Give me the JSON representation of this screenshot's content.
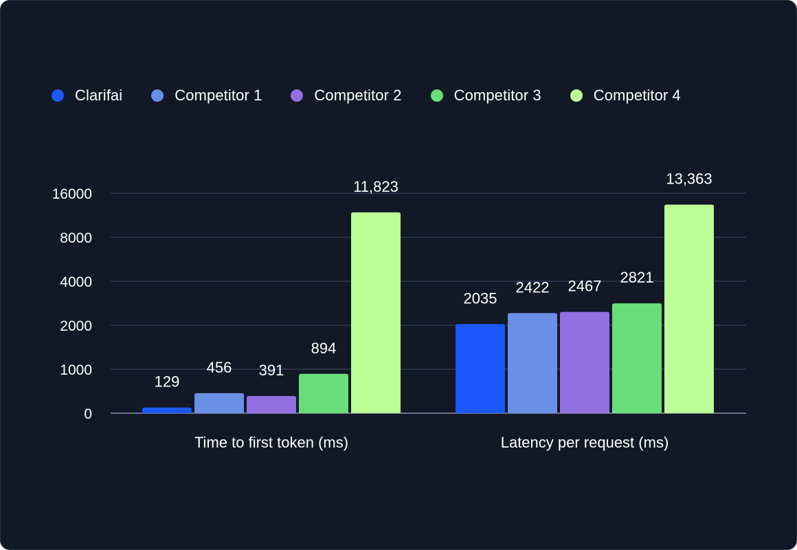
{
  "chart_data": {
    "type": "bar",
    "title": "",
    "xlabel": "",
    "ylabel": "",
    "categories": [
      "Time to first token (ms)",
      "Latency per request (ms)"
    ],
    "y_scale": "log2",
    "yticks": [
      0,
      1000,
      2000,
      4000,
      8000,
      16000
    ],
    "ylim": [
      0,
      16000
    ],
    "grid": true,
    "legend_position": "top-left",
    "series": [
      {
        "name": "Clarifai",
        "color": "#1c57fc",
        "values": [
          129,
          2035
        ],
        "labels": [
          "129",
          "2035"
        ]
      },
      {
        "name": "Competitor 1",
        "color": "#6a8fe6",
        "values": [
          456,
          2422
        ],
        "labels": [
          "456",
          "2422"
        ]
      },
      {
        "name": "Competitor 2",
        "color": "#9270e0",
        "values": [
          391,
          2467
        ],
        "labels": [
          "391",
          "2467"
        ]
      },
      {
        "name": "Competitor 3",
        "color": "#68de7b",
        "values": [
          894,
          2821
        ],
        "labels": [
          "894",
          "2821"
        ]
      },
      {
        "name": "Competitor 4",
        "color": "#bcfd95",
        "values": [
          11823,
          13363
        ],
        "labels": [
          "11,823",
          "13,363"
        ]
      }
    ]
  },
  "colors": {
    "background": "#121826",
    "gridline": "#444b6a",
    "axis": "#8a90a8",
    "text": "#ffffff"
  }
}
